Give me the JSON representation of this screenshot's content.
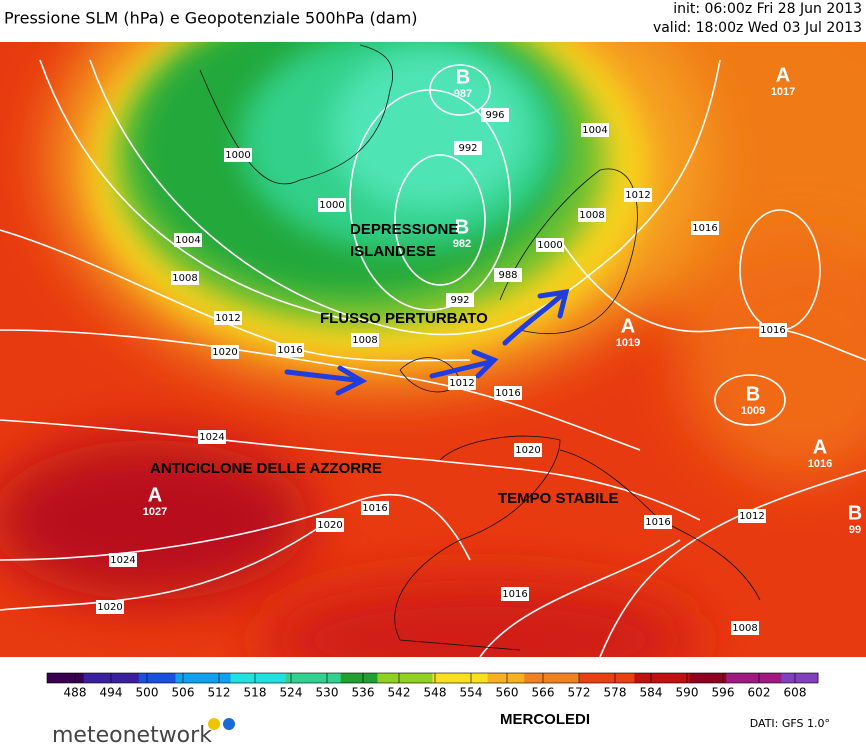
{
  "header": {
    "title": "Pressione SLM (hPa) e Geopotenziale 500hPa (dam)",
    "init": "init: 06:00z Fri 28 Jun 2013",
    "valid": "valid: 18:00z Wed 03 Jul 2013"
  },
  "annotations": [
    "DEPRESSIONE",
    "ISLANDESE",
    "FLUSSO PERTURBATO",
    "ANTICICLONE DELLE AZZORRE",
    "TEMPO STABILE"
  ],
  "centers": [
    {
      "letter": "B",
      "value": "987"
    },
    {
      "letter": "B",
      "value": "982"
    },
    {
      "letter": "A",
      "value": "1017"
    },
    {
      "letter": "A",
      "value": "1019"
    },
    {
      "letter": "B",
      "value": "1009"
    },
    {
      "letter": "A",
      "value": "1016"
    },
    {
      "letter": "A",
      "value": "1027"
    },
    {
      "letter": "B",
      "value": "99"
    }
  ],
  "isobar_labels": [
    "1000",
    "1000",
    "996",
    "992",
    "1004",
    "1004",
    "1008",
    "1012",
    "1020",
    "1016",
    "1008",
    "992",
    "988",
    "1000",
    "1008",
    "1012",
    "1016",
    "1016",
    "1012",
    "1016",
    "1024",
    "1020",
    "1016",
    "1020",
    "1024",
    "1020",
    "1016",
    "1012",
    "1016",
    "1008"
  ],
  "colorbar": {
    "ticks": [
      488,
      494,
      500,
      506,
      512,
      518,
      524,
      530,
      536,
      542,
      548,
      554,
      560,
      566,
      572,
      578,
      584,
      590,
      596,
      602,
      608
    ],
    "colors": [
      "#3a0050",
      "#3a20a0",
      "#1a50e0",
      "#10a0f0",
      "#20e0e0",
      "#30d090",
      "#20a030",
      "#90d020",
      "#f8e020",
      "#f8b020",
      "#f08020",
      "#e84010",
      "#c01010",
      "#900020",
      "#a01880",
      "#8040c0"
    ]
  },
  "footer": {
    "brand": "meteonetwork",
    "day": "MERCOLEDI",
    "source": "DATI: GFS 1.0°"
  }
}
